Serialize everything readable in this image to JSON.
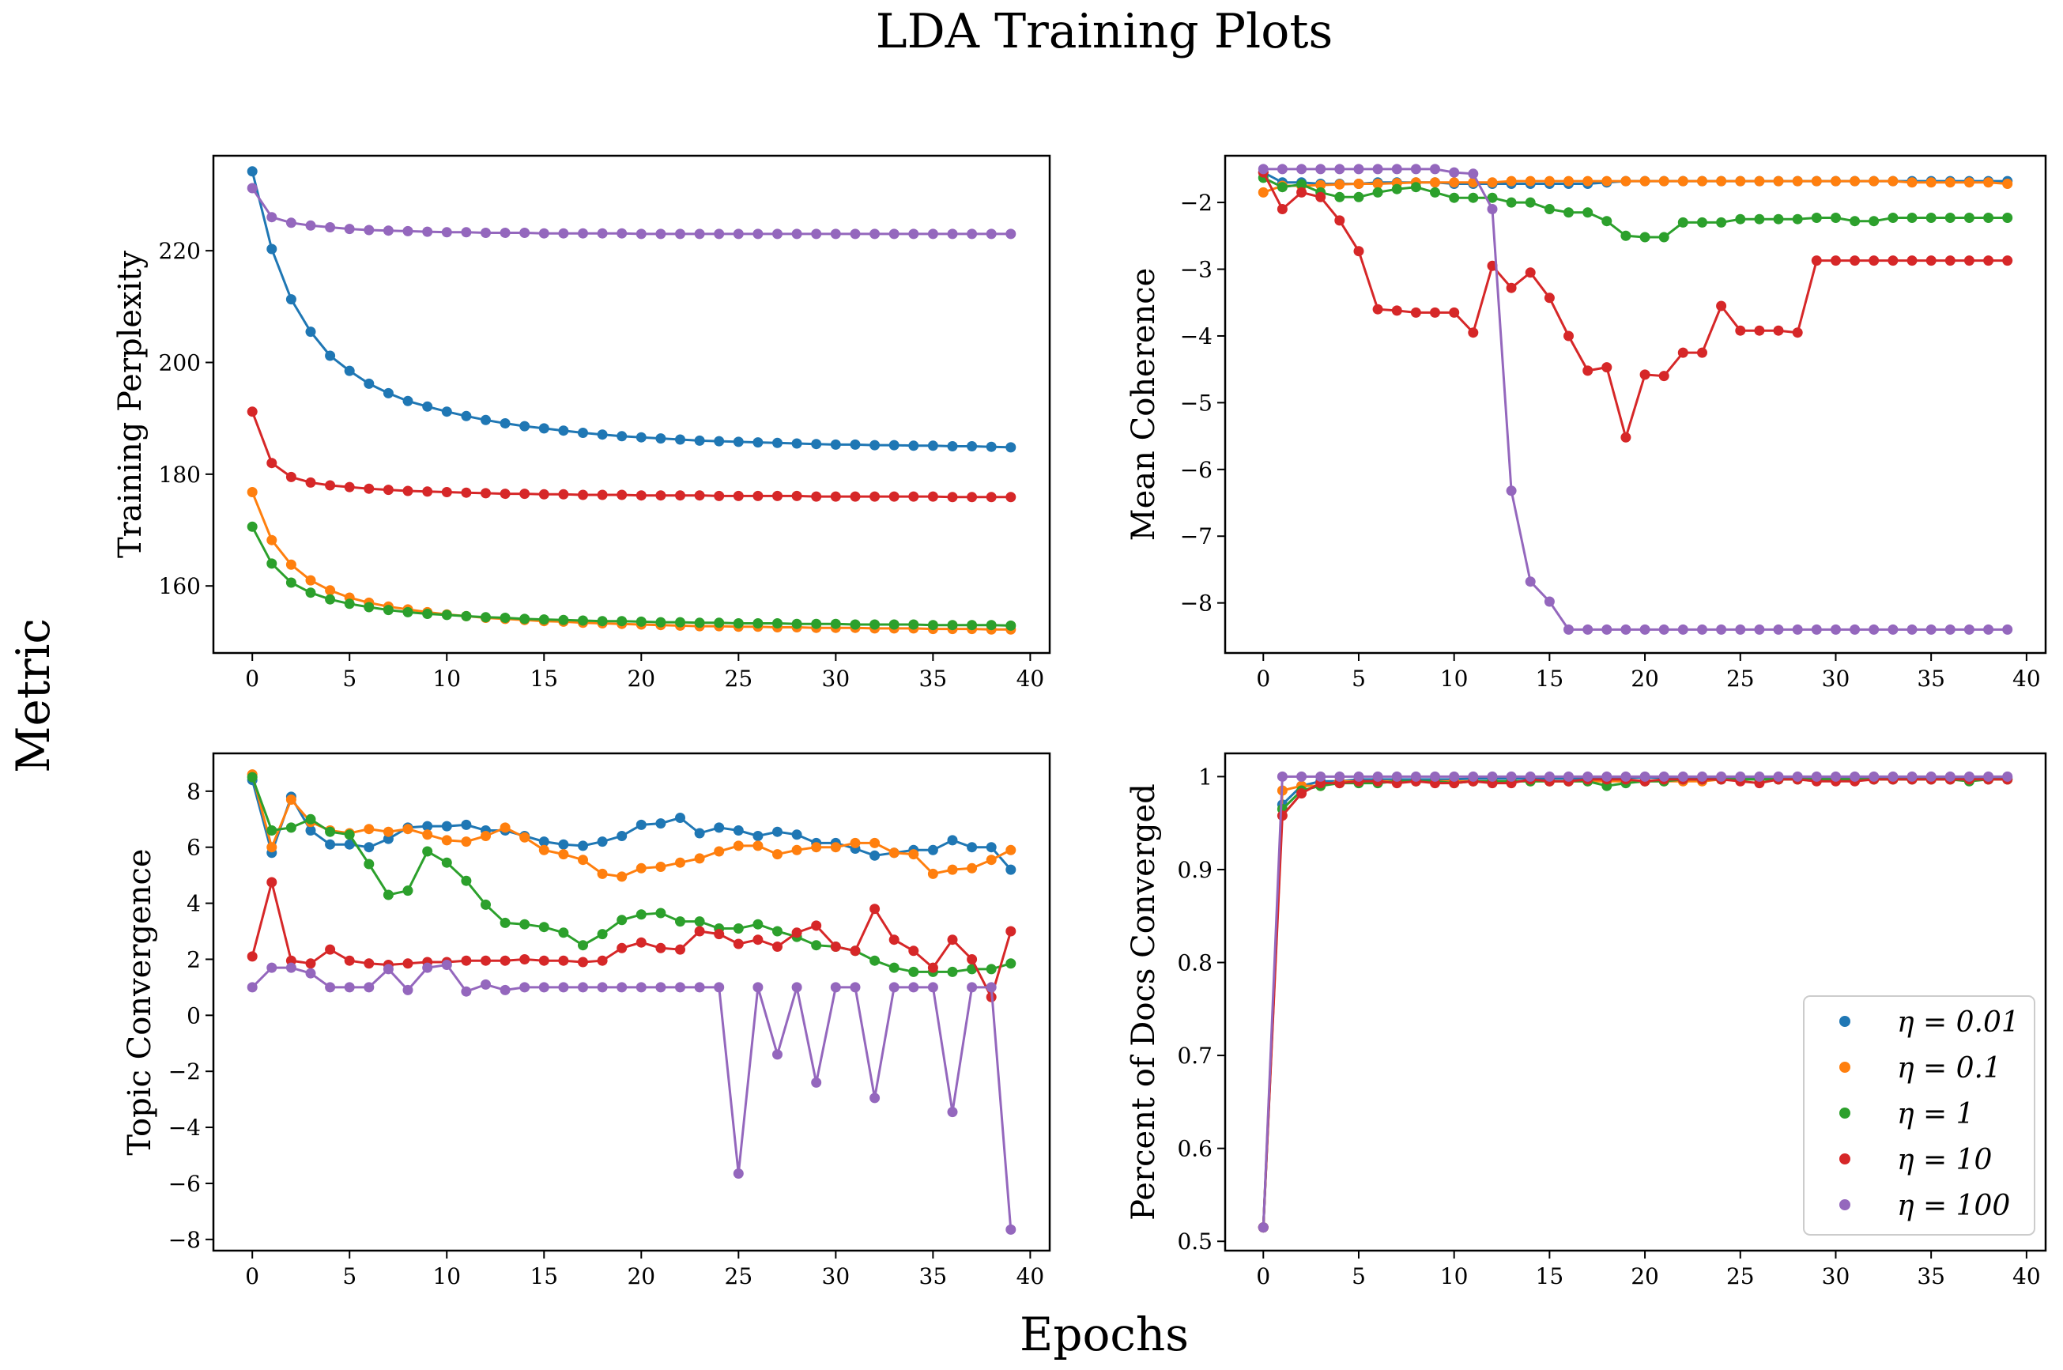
{
  "figure": {
    "title": "LDA Training Plots",
    "xlabel": "Epochs",
    "ylabel": "Metric"
  },
  "legend": {
    "placement": "lower-right of bottom-right panel",
    "entries": [
      {
        "label": "η = 0.01",
        "color": "#1f77b4"
      },
      {
        "label": "η = 0.1",
        "color": "#ff7f0e"
      },
      {
        "label": "η = 1",
        "color": "#2ca02c"
      },
      {
        "label": "η = 10",
        "color": "#d62728"
      },
      {
        "label": "η = 100",
        "color": "#9467bd"
      }
    ]
  },
  "chart_data": [
    {
      "type": "line",
      "ylabel": "Training Perplexity",
      "xlim": [
        -2,
        41
      ],
      "ylim": [
        148,
        237
      ],
      "xticks": [
        0,
        5,
        10,
        15,
        20,
        25,
        30,
        35,
        40
      ],
      "yticks": [
        160,
        180,
        200,
        220
      ],
      "series": [
        {
          "name": "η = 0.01",
          "color": "#1f77b4",
          "values": [
            234.2,
            220.3,
            211.3,
            205.5,
            201.2,
            198.5,
            196.2,
            194.5,
            193.1,
            192.1,
            191.2,
            190.4,
            189.7,
            189.1,
            188.6,
            188.2,
            187.8,
            187.4,
            187.1,
            186.8,
            186.6,
            186.4,
            186.2,
            186.0,
            185.9,
            185.8,
            185.7,
            185.6,
            185.5,
            185.4,
            185.3,
            185.3,
            185.2,
            185.2,
            185.1,
            185.1,
            185.0,
            185.0,
            184.9,
            184.8
          ]
        },
        {
          "name": "η = 0.1",
          "color": "#ff7f0e",
          "values": [
            176.8,
            168.2,
            163.8,
            161.0,
            159.2,
            157.9,
            157.0,
            156.3,
            155.8,
            155.3,
            154.9,
            154.6,
            154.3,
            154.1,
            153.9,
            153.7,
            153.6,
            153.4,
            153.3,
            153.2,
            153.1,
            153.0,
            152.9,
            152.8,
            152.8,
            152.7,
            152.7,
            152.6,
            152.6,
            152.5,
            152.5,
            152.5,
            152.4,
            152.4,
            152.4,
            152.3,
            152.3,
            152.3,
            152.2,
            152.2
          ]
        },
        {
          "name": "η = 1",
          "color": "#2ca02c",
          "values": [
            170.6,
            164.0,
            160.6,
            158.8,
            157.6,
            156.8,
            156.2,
            155.7,
            155.3,
            155.0,
            154.8,
            154.6,
            154.4,
            154.3,
            154.1,
            154.0,
            153.9,
            153.8,
            153.7,
            153.7,
            153.6,
            153.5,
            153.5,
            153.4,
            153.4,
            153.3,
            153.3,
            153.3,
            153.2,
            153.2,
            153.2,
            153.1,
            153.1,
            153.1,
            153.1,
            153.0,
            153.0,
            153.0,
            153.0,
            152.9
          ]
        },
        {
          "name": "η = 10",
          "color": "#d62728",
          "values": [
            191.2,
            182.0,
            179.5,
            178.5,
            178.0,
            177.7,
            177.4,
            177.2,
            177.0,
            176.9,
            176.8,
            176.7,
            176.6,
            176.5,
            176.5,
            176.4,
            176.4,
            176.3,
            176.3,
            176.3,
            176.2,
            176.2,
            176.2,
            176.2,
            176.1,
            176.1,
            176.1,
            176.1,
            176.1,
            176.0,
            176.0,
            176.0,
            176.0,
            176.0,
            176.0,
            176.0,
            175.9,
            175.9,
            175.9,
            175.9
          ]
        },
        {
          "name": "η = 100",
          "color": "#9467bd",
          "values": [
            231.2,
            226.0,
            225.0,
            224.5,
            224.2,
            223.9,
            223.7,
            223.6,
            223.5,
            223.4,
            223.3,
            223.3,
            223.2,
            223.2,
            223.2,
            223.1,
            223.1,
            223.1,
            223.1,
            223.1,
            223.0,
            223.0,
            223.0,
            223.0,
            223.0,
            223.0,
            223.0,
            223.0,
            223.0,
            223.0,
            223.0,
            223.0,
            223.0,
            223.0,
            223.0,
            223.0,
            223.0,
            223.0,
            223.0,
            223.0
          ]
        }
      ]
    },
    {
      "type": "line",
      "ylabel": "Mean Coherence",
      "xlim": [
        -2,
        41
      ],
      "ylim": [
        -8.75,
        -1.3
      ],
      "xticks": [
        0,
        5,
        10,
        15,
        20,
        25,
        30,
        35,
        40
      ],
      "yticks": [
        -8,
        -7,
        -6,
        -5,
        -4,
        -3,
        -2
      ],
      "series": [
        {
          "name": "η = 0.01",
          "color": "#1f77b4",
          "values": [
            -1.55,
            -1.7,
            -1.7,
            -1.72,
            -1.72,
            -1.72,
            -1.7,
            -1.7,
            -1.7,
            -1.7,
            -1.72,
            -1.72,
            -1.72,
            -1.72,
            -1.72,
            -1.72,
            -1.72,
            -1.72,
            -1.7,
            -1.68,
            -1.68,
            -1.68,
            -1.68,
            -1.68,
            -1.68,
            -1.68,
            -1.68,
            -1.68,
            -1.68,
            -1.68,
            -1.68,
            -1.68,
            -1.68,
            -1.68,
            -1.68,
            -1.68,
            -1.68,
            -1.68,
            -1.68,
            -1.68
          ]
        },
        {
          "name": "η = 0.1",
          "color": "#ff7f0e",
          "values": [
            -1.85,
            -1.75,
            -1.75,
            -1.74,
            -1.73,
            -1.72,
            -1.72,
            -1.71,
            -1.7,
            -1.7,
            -1.7,
            -1.7,
            -1.7,
            -1.68,
            -1.68,
            -1.68,
            -1.68,
            -1.68,
            -1.68,
            -1.68,
            -1.68,
            -1.68,
            -1.68,
            -1.68,
            -1.68,
            -1.68,
            -1.68,
            -1.68,
            -1.68,
            -1.68,
            -1.68,
            -1.68,
            -1.68,
            -1.68,
            -1.7,
            -1.7,
            -1.7,
            -1.7,
            -1.7,
            -1.72
          ]
        },
        {
          "name": "η = 1",
          "color": "#2ca02c",
          "values": [
            -1.63,
            -1.77,
            -1.73,
            -1.85,
            -1.92,
            -1.92,
            -1.85,
            -1.8,
            -1.77,
            -1.85,
            -1.93,
            -1.93,
            -1.93,
            -2.0,
            -2.0,
            -2.1,
            -2.15,
            -2.15,
            -2.28,
            -2.5,
            -2.52,
            -2.52,
            -2.3,
            -2.3,
            -2.3,
            -2.25,
            -2.25,
            -2.25,
            -2.25,
            -2.23,
            -2.23,
            -2.28,
            -2.28,
            -2.23,
            -2.23,
            -2.23,
            -2.23,
            -2.23,
            -2.23,
            -2.23
          ]
        },
        {
          "name": "η = 10",
          "color": "#d62728",
          "values": [
            -1.55,
            -2.1,
            -1.85,
            -1.92,
            -2.27,
            -2.73,
            -3.6,
            -3.62,
            -3.65,
            -3.65,
            -3.65,
            -3.95,
            -2.95,
            -3.28,
            -3.05,
            -3.43,
            -4.0,
            -4.52,
            -4.47,
            -5.52,
            -4.58,
            -4.6,
            -4.25,
            -4.25,
            -3.55,
            -3.92,
            -3.92,
            -3.92,
            -3.95,
            -2.87,
            -2.87,
            -2.87,
            -2.87,
            -2.87,
            -2.87,
            -2.87,
            -2.87,
            -2.87,
            -2.87,
            -2.87
          ]
        },
        {
          "name": "η = 100",
          "color": "#9467bd",
          "values": [
            -1.5,
            -1.5,
            -1.5,
            -1.5,
            -1.5,
            -1.5,
            -1.5,
            -1.5,
            -1.5,
            -1.5,
            -1.55,
            -1.57,
            -2.1,
            -6.32,
            -7.68,
            -7.98,
            -8.4,
            -8.4,
            -8.4,
            -8.4,
            -8.4,
            -8.4,
            -8.4,
            -8.4,
            -8.4,
            -8.4,
            -8.4,
            -8.4,
            -8.4,
            -8.4,
            -8.4,
            -8.4,
            -8.4,
            -8.4,
            -8.4,
            -8.4,
            -8.4,
            -8.4,
            -8.4,
            -8.4
          ]
        }
      ]
    },
    {
      "type": "line",
      "ylabel": "Topic Convergence",
      "xlim": [
        -2,
        41
      ],
      "ylim": [
        -8.4,
        9.35
      ],
      "xticks": [
        0,
        5,
        10,
        15,
        20,
        25,
        30,
        35,
        40
      ],
      "yticks": [
        -8,
        -6,
        -4,
        -2,
        0,
        2,
        4,
        6,
        8
      ],
      "series": [
        {
          "name": "η = 0.01",
          "color": "#1f77b4",
          "values": [
            8.4,
            5.8,
            7.8,
            6.6,
            6.1,
            6.1,
            6.0,
            6.3,
            6.7,
            6.75,
            6.75,
            6.8,
            6.6,
            6.6,
            6.4,
            6.2,
            6.1,
            6.05,
            6.2,
            6.4,
            6.8,
            6.85,
            7.05,
            6.5,
            6.7,
            6.6,
            6.4,
            6.55,
            6.45,
            6.15,
            6.15,
            5.95,
            5.7,
            5.8,
            5.9,
            5.9,
            6.25,
            6.0,
            6.0,
            5.2
          ]
        },
        {
          "name": "η = 0.1",
          "color": "#ff7f0e",
          "values": [
            8.6,
            6.0,
            7.7,
            6.9,
            6.6,
            6.5,
            6.65,
            6.55,
            6.65,
            6.45,
            6.25,
            6.2,
            6.4,
            6.7,
            6.35,
            5.9,
            5.75,
            5.55,
            5.05,
            4.95,
            5.25,
            5.3,
            5.45,
            5.6,
            5.85,
            6.05,
            6.05,
            5.75,
            5.9,
            6.0,
            6.0,
            6.15,
            6.15,
            5.8,
            5.75,
            5.05,
            5.2,
            5.25,
            5.55,
            5.9
          ]
        },
        {
          "name": "η = 1",
          "color": "#2ca02c",
          "values": [
            8.5,
            6.6,
            6.7,
            7.0,
            6.55,
            6.45,
            5.4,
            4.3,
            4.45,
            5.85,
            5.45,
            4.8,
            3.95,
            3.3,
            3.25,
            3.15,
            2.95,
            2.5,
            2.9,
            3.4,
            3.6,
            3.65,
            3.35,
            3.35,
            3.1,
            3.1,
            3.25,
            3.0,
            2.8,
            2.5,
            2.45,
            2.3,
            1.95,
            1.7,
            1.55,
            1.55,
            1.55,
            1.65,
            1.65,
            1.85
          ]
        },
        {
          "name": "η = 10",
          "color": "#d62728",
          "values": [
            2.1,
            4.75,
            1.95,
            1.85,
            2.35,
            1.95,
            1.85,
            1.8,
            1.85,
            1.9,
            1.9,
            1.95,
            1.95,
            1.95,
            2.0,
            1.95,
            1.95,
            1.9,
            1.95,
            2.4,
            2.6,
            2.4,
            2.35,
            3.0,
            2.9,
            2.55,
            2.7,
            2.45,
            2.95,
            3.2,
            2.45,
            2.3,
            3.8,
            2.7,
            2.3,
            1.7,
            2.7,
            2.0,
            0.65,
            3.0
          ]
        },
        {
          "name": "η = 100",
          "color": "#9467bd",
          "values": [
            1.0,
            1.7,
            1.7,
            1.5,
            1.0,
            1.0,
            1.0,
            1.65,
            0.9,
            1.7,
            1.8,
            0.85,
            1.1,
            0.9,
            1.0,
            1.0,
            1.0,
            1.0,
            1.0,
            1.0,
            1.0,
            1.0,
            1.0,
            1.0,
            1.0,
            -5.65,
            1.0,
            -1.4,
            1.0,
            -2.4,
            1.0,
            1.0,
            -2.95,
            1.0,
            1.0,
            1.0,
            -3.45,
            1.0,
            1.0,
            -7.65
          ]
        }
      ]
    },
    {
      "type": "line",
      "ylabel": "Percent of Docs Converged",
      "xlim": [
        -2,
        41
      ],
      "ylim": [
        0.49,
        1.025
      ],
      "xticks": [
        0,
        5,
        10,
        15,
        20,
        25,
        30,
        35,
        40
      ],
      "yticks": [
        0.5,
        0.6,
        0.7,
        0.8,
        0.9,
        1.0
      ],
      "series": [
        {
          "name": "η = 0.01",
          "color": "#1f77b4",
          "values": [
            0.515,
            0.97,
            0.99,
            0.995,
            0.995,
            0.997,
            0.997,
            0.997,
            0.997,
            0.997,
            0.997,
            0.998,
            0.998,
            0.998,
            0.998,
            0.998,
            0.998,
            0.998,
            0.998,
            0.999,
            0.999,
            0.999,
            0.999,
            0.999,
            0.999,
            0.999,
            0.999,
            0.999,
            0.999,
            0.999,
            0.999,
            0.999,
            0.999,
            0.999,
            0.999,
            0.999,
            0.999,
            0.999,
            0.999,
            0.999
          ]
        },
        {
          "name": "η = 0.1",
          "color": "#ff7f0e",
          "values": [
            0.515,
            0.985,
            0.99,
            0.99,
            0.995,
            0.995,
            0.995,
            0.995,
            0.995,
            0.995,
            0.995,
            0.995,
            0.995,
            0.995,
            0.995,
            0.995,
            0.995,
            0.995,
            0.995,
            0.995,
            0.995,
            0.995,
            0.995,
            0.995,
            0.997,
            0.997,
            0.997,
            0.997,
            0.997,
            0.997,
            0.997,
            0.997,
            0.997,
            0.997,
            0.997,
            0.997,
            0.997,
            0.997,
            0.997,
            0.997
          ]
        },
        {
          "name": "η = 1",
          "color": "#2ca02c",
          "values": [
            0.515,
            0.965,
            0.985,
            0.99,
            0.993,
            0.993,
            0.993,
            0.995,
            0.995,
            0.995,
            0.993,
            0.995,
            0.995,
            0.995,
            0.995,
            0.995,
            0.995,
            0.995,
            0.99,
            0.993,
            0.995,
            0.995,
            0.997,
            0.997,
            0.997,
            0.997,
            0.997,
            0.997,
            0.997,
            0.997,
            0.997,
            0.997,
            0.997,
            0.997,
            0.997,
            0.997,
            0.997,
            0.995,
            0.997,
            0.997
          ]
        },
        {
          "name": "η = 10",
          "color": "#d62728",
          "values": [
            0.515,
            0.958,
            0.982,
            0.993,
            0.993,
            0.995,
            0.995,
            0.993,
            0.995,
            0.993,
            0.993,
            0.995,
            0.993,
            0.993,
            0.997,
            0.995,
            0.995,
            0.997,
            0.997,
            0.997,
            0.995,
            0.997,
            0.997,
            0.997,
            0.997,
            0.995,
            0.993,
            0.997,
            0.997,
            0.995,
            0.995,
            0.995,
            0.997,
            0.997,
            0.997,
            0.997,
            0.997,
            0.997,
            0.997,
            0.997
          ]
        },
        {
          "name": "η = 100",
          "color": "#9467bd",
          "values": [
            0.515,
            1.0,
            1.0,
            1.0,
            1.0,
            1.0,
            1.0,
            1.0,
            1.0,
            1.0,
            1.0,
            1.0,
            1.0,
            1.0,
            1.0,
            1.0,
            1.0,
            1.0,
            1.0,
            1.0,
            1.0,
            1.0,
            1.0,
            1.0,
            1.0,
            1.0,
            1.0,
            1.0,
            1.0,
            1.0,
            1.0,
            1.0,
            1.0,
            1.0,
            1.0,
            1.0,
            1.0,
            1.0,
            1.0,
            1.0
          ]
        }
      ]
    }
  ]
}
